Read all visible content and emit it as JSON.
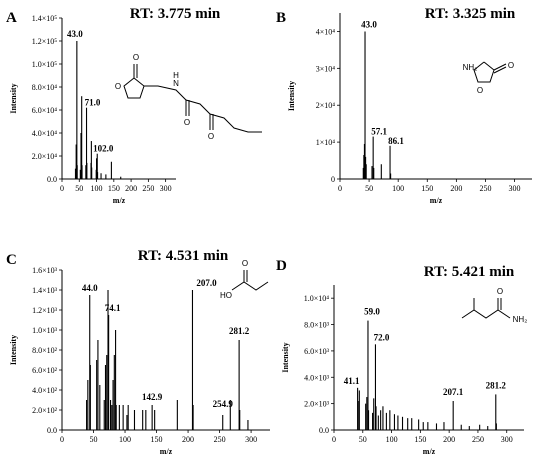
{
  "panels": [
    {
      "label": "A",
      "rt_text": "RT: 3.775 min",
      "structure": "homoserine-lactone-3-oxohexanoyl",
      "structure_labels": [
        "O",
        "N",
        "H",
        "O",
        "O"
      ],
      "chart_data": {
        "type": "bar",
        "xlabel": "m/z",
        "ylabel": "Intensity",
        "xlim": [
          0,
          330
        ],
        "ylim": [
          0,
          140000
        ],
        "xticks": [
          0,
          50,
          100,
          150,
          200,
          250,
          300
        ],
        "yticks": [
          0,
          20000,
          40000,
          60000,
          80000,
          100000,
          120000,
          140000
        ],
        "ytick_labels": [
          "0.0",
          "2.0×10⁴",
          "4.0×10⁴",
          "6.0×10⁴",
          "8.0×10⁴",
          "1.0×10⁵",
          "1.2×10⁵",
          "1.4×10⁵"
        ],
        "grid": false,
        "peaks": [
          {
            "mz": 39,
            "intensity": 9000
          },
          {
            "mz": 41,
            "intensity": 30000
          },
          {
            "mz": 42,
            "intensity": 14000
          },
          {
            "mz": 43,
            "intensity": 120000,
            "label": "43.0"
          },
          {
            "mz": 44,
            "intensity": 12000
          },
          {
            "mz": 53,
            "intensity": 8000
          },
          {
            "mz": 55,
            "intensity": 40000
          },
          {
            "mz": 57,
            "intensity": 72000
          },
          {
            "mz": 58,
            "intensity": 12000
          },
          {
            "mz": 69,
            "intensity": 12000
          },
          {
            "mz": 71,
            "intensity": 62000,
            "label": "71.0"
          },
          {
            "mz": 72,
            "intensity": 14000
          },
          {
            "mz": 84,
            "intensity": 14000
          },
          {
            "mz": 85,
            "intensity": 33000
          },
          {
            "mz": 86,
            "intensity": 10000
          },
          {
            "mz": 99,
            "intensity": 8000
          },
          {
            "mz": 100,
            "intensity": 18000
          },
          {
            "mz": 102,
            "intensity": 22000,
            "label": "102.0"
          },
          {
            "mz": 103,
            "intensity": 6000
          },
          {
            "mz": 113,
            "intensity": 5000
          },
          {
            "mz": 127,
            "intensity": 4000
          },
          {
            "mz": 143,
            "intensity": 15000
          },
          {
            "mz": 170,
            "intensity": 2000
          }
        ]
      }
    },
    {
      "label": "B",
      "rt_text": "RT: 3.325 min",
      "structure": "homoserine-lactone-amine",
      "structure_labels": [
        "NH₂",
        "O",
        "O"
      ],
      "chart_data": {
        "type": "bar",
        "xlabel": "m/z",
        "ylabel": "Intensity",
        "xlim": [
          0,
          330
        ],
        "ylim": [
          0,
          45000
        ],
        "xticks": [
          0,
          50,
          100,
          150,
          200,
          250,
          300
        ],
        "yticks": [
          0,
          10000,
          20000,
          30000,
          40000
        ],
        "ytick_labels": [
          "0",
          "1×10⁴",
          "2×10⁴",
          "3×10⁴",
          "4×10⁴"
        ],
        "grid": false,
        "peaks": [
          {
            "mz": 40,
            "intensity": 3000
          },
          {
            "mz": 41,
            "intensity": 6500
          },
          {
            "mz": 42,
            "intensity": 9500
          },
          {
            "mz": 43,
            "intensity": 40000,
            "label": "43.0"
          },
          {
            "mz": 44,
            "intensity": 6000
          },
          {
            "mz": 45,
            "intensity": 4000
          },
          {
            "mz": 55,
            "intensity": 3500
          },
          {
            "mz": 57,
            "intensity": 11500,
            "label": "57.1"
          },
          {
            "mz": 58,
            "intensity": 3000
          },
          {
            "mz": 71,
            "intensity": 4000
          },
          {
            "mz": 86,
            "intensity": 9000,
            "label": "86.1"
          },
          {
            "mz": 87,
            "intensity": 1500
          }
        ]
      }
    },
    {
      "label": "C",
      "rt_text": "RT: 4.531 min",
      "structure": "propanoic-acid",
      "structure_labels": [
        "O",
        "HO"
      ],
      "chart_data": {
        "type": "bar",
        "xlabel": "m/z",
        "ylabel": "Intensity",
        "xlim": [
          0,
          330
        ],
        "ylim": [
          0,
          1600
        ],
        "xticks": [
          0,
          50,
          100,
          150,
          200,
          250,
          300
        ],
        "yticks": [
          0,
          200,
          400,
          600,
          800,
          1000,
          1200,
          1400,
          1600
        ],
        "ytick_labels": [
          "0.0",
          "2.0×10²",
          "4.0×10²",
          "6.0×10²",
          "8.0×10²",
          "1.0×10³",
          "1.2×10³",
          "1.4×10³",
          "1.6×10³"
        ],
        "grid": false,
        "peaks": [
          {
            "mz": 39,
            "intensity": 300
          },
          {
            "mz": 41,
            "intensity": 500
          },
          {
            "mz": 44,
            "intensity": 1350,
            "label": "44.0"
          },
          {
            "mz": 45,
            "intensity": 650
          },
          {
            "mz": 55,
            "intensity": 700
          },
          {
            "mz": 57,
            "intensity": 900
          },
          {
            "mz": 60,
            "intensity": 450
          },
          {
            "mz": 67,
            "intensity": 300
          },
          {
            "mz": 69,
            "intensity": 650
          },
          {
            "mz": 71,
            "intensity": 750
          },
          {
            "mz": 73,
            "intensity": 1400
          },
          {
            "mz": 74,
            "intensity": 1150,
            "label": "74.1"
          },
          {
            "mz": 77,
            "intensity": 300
          },
          {
            "mz": 79,
            "intensity": 250
          },
          {
            "mz": 81,
            "intensity": 500
          },
          {
            "mz": 83,
            "intensity": 750
          },
          {
            "mz": 85,
            "intensity": 1000
          },
          {
            "mz": 86,
            "intensity": 250
          },
          {
            "mz": 91,
            "intensity": 250
          },
          {
            "mz": 97,
            "intensity": 250
          },
          {
            "mz": 103,
            "intensity": 150
          },
          {
            "mz": 105,
            "intensity": 250
          },
          {
            "mz": 115,
            "intensity": 200
          },
          {
            "mz": 128,
            "intensity": 200
          },
          {
            "mz": 133,
            "intensity": 200
          },
          {
            "mz": 143,
            "intensity": 250,
            "label": "142.9"
          },
          {
            "mz": 147,
            "intensity": 200
          },
          {
            "mz": 183,
            "intensity": 300
          },
          {
            "mz": 207,
            "intensity": 1400,
            "label": "207.0"
          },
          {
            "mz": 208,
            "intensity": 250
          },
          {
            "mz": 255,
            "intensity": 150,
            "label": "254.9"
          },
          {
            "mz": 267,
            "intensity": 300
          },
          {
            "mz": 281,
            "intensity": 900,
            "label": "281.2"
          },
          {
            "mz": 282,
            "intensity": 200
          },
          {
            "mz": 295,
            "intensity": 100
          }
        ]
      }
    },
    {
      "label": "D",
      "rt_text": "RT: 5.421 min",
      "structure": "3-methylbutanamide",
      "structure_labels": [
        "O",
        "NH₂"
      ],
      "chart_data": {
        "type": "bar",
        "xlabel": "m/z",
        "ylabel": "Intensity",
        "xlim": [
          0,
          330
        ],
        "ylim": [
          0,
          11000
        ],
        "xticks": [
          0,
          50,
          100,
          150,
          200,
          250,
          300
        ],
        "yticks": [
          0,
          2000,
          4000,
          6000,
          8000,
          10000
        ],
        "ytick_labels": [
          "0.0",
          "2.0×10³",
          "4.0×10³",
          "6.0×10³",
          "8.0×10³",
          "1.0×10⁴"
        ],
        "grid": false,
        "peaks": [
          {
            "mz": 41,
            "intensity": 3200,
            "label": "41.1"
          },
          {
            "mz": 43,
            "intensity": 2200
          },
          {
            "mz": 44,
            "intensity": 3000
          },
          {
            "mz": 55,
            "intensity": 2000
          },
          {
            "mz": 57,
            "intensity": 2500
          },
          {
            "mz": 59,
            "intensity": 8300,
            "label": "59.0"
          },
          {
            "mz": 60,
            "intensity": 1500
          },
          {
            "mz": 67,
            "intensity": 1300
          },
          {
            "mz": 69,
            "intensity": 2400
          },
          {
            "mz": 72,
            "intensity": 6500,
            "label": "72.0"
          },
          {
            "mz": 73,
            "intensity": 1800
          },
          {
            "mz": 77,
            "intensity": 1100
          },
          {
            "mz": 81,
            "intensity": 1500
          },
          {
            "mz": 85,
            "intensity": 1800
          },
          {
            "mz": 91,
            "intensity": 1300
          },
          {
            "mz": 97,
            "intensity": 1500
          },
          {
            "mz": 105,
            "intensity": 1200
          },
          {
            "mz": 111,
            "intensity": 1100
          },
          {
            "mz": 119,
            "intensity": 1000
          },
          {
            "mz": 128,
            "intensity": 900
          },
          {
            "mz": 135,
            "intensity": 900
          },
          {
            "mz": 147,
            "intensity": 800
          },
          {
            "mz": 155,
            "intensity": 600
          },
          {
            "mz": 163,
            "intensity": 600
          },
          {
            "mz": 178,
            "intensity": 500
          },
          {
            "mz": 191,
            "intensity": 600
          },
          {
            "mz": 207,
            "intensity": 2200,
            "label": "207.1"
          },
          {
            "mz": 221,
            "intensity": 400
          },
          {
            "mz": 235,
            "intensity": 300
          },
          {
            "mz": 253,
            "intensity": 400
          },
          {
            "mz": 267,
            "intensity": 300
          },
          {
            "mz": 281,
            "intensity": 2700,
            "label": "281.2"
          },
          {
            "mz": 282,
            "intensity": 500
          }
        ]
      }
    }
  ]
}
